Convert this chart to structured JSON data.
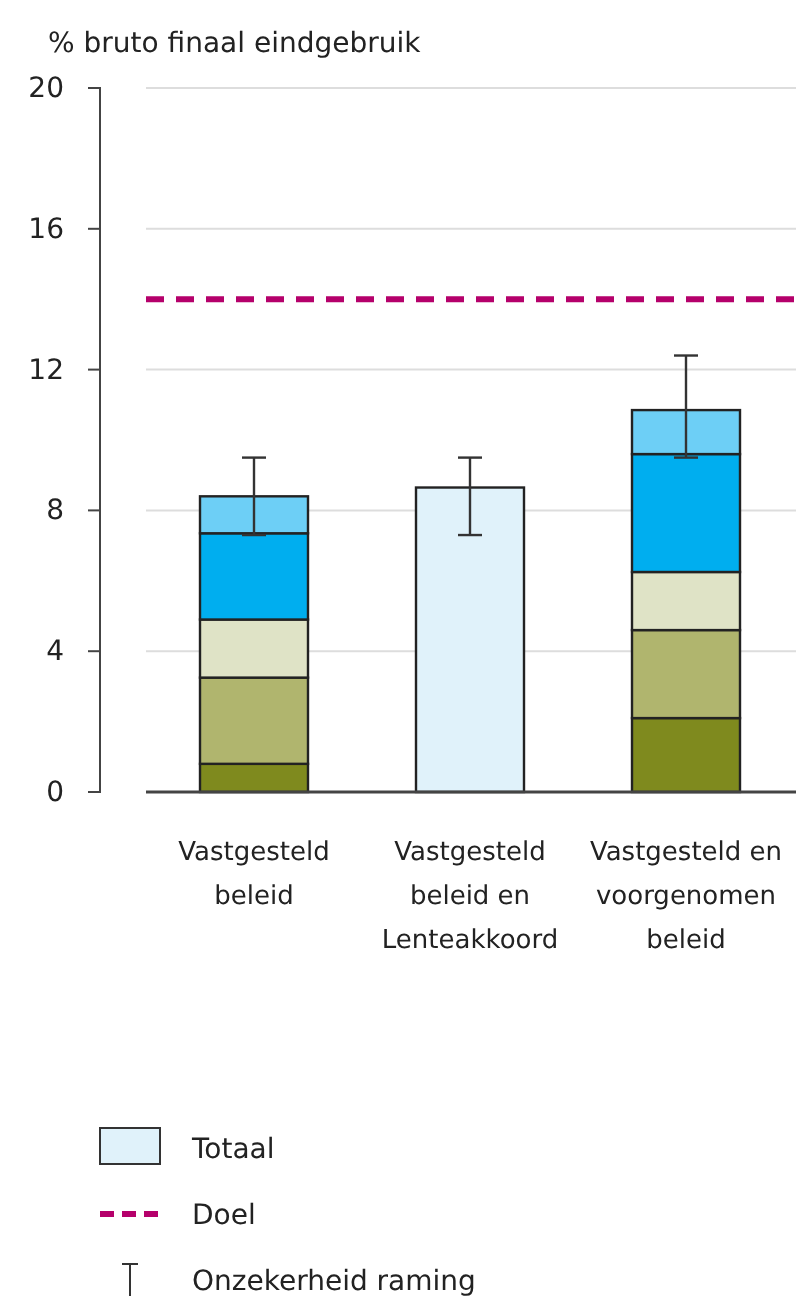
{
  "chart_data": {
    "type": "bar",
    "stacked": true,
    "ylabel": "% bruto finaal eindgebruik",
    "categories": [
      "Vastgesteld beleid",
      "Vastgesteld beleid en Lenteakkoord",
      "Vastgesteld en voorgenomen beleid"
    ],
    "series": [
      {
        "color": "#7f8a1e",
        "values": [
          0.8,
          null,
          2.1
        ]
      },
      {
        "color": "#b0b56e",
        "values": [
          2.45,
          null,
          2.5
        ]
      },
      {
        "color": "#dfe3c6",
        "values": [
          1.65,
          null,
          1.65
        ]
      },
      {
        "color": "#00aeef",
        "values": [
          2.45,
          null,
          3.35
        ]
      },
      {
        "color": "#6dcff6",
        "values": [
          1.05,
          null,
          1.25
        ],
        "errors": [
          [
            7.3,
            9.5
          ],
          null,
          [
            9.5,
            12.4
          ]
        ]
      },
      {
        "name": "Totaal",
        "color": "#e0f2fa",
        "values": [
          null,
          8.65,
          null
        ],
        "errors": [
          null,
          [
            7.3,
            9.5
          ],
          null
        ]
      }
    ],
    "ylim": [
      0,
      20
    ],
    "yticks": [
      0,
      4,
      8,
      12,
      16,
      20
    ],
    "grid": "y",
    "ref_lines": [
      {
        "axis": "y",
        "value": 14,
        "label": "Doel",
        "color": "#b5006b",
        "line_style": "dashed"
      }
    ],
    "annotations": [
      "Onzekerheid raming"
    ],
    "legend": "bottom"
  }
}
